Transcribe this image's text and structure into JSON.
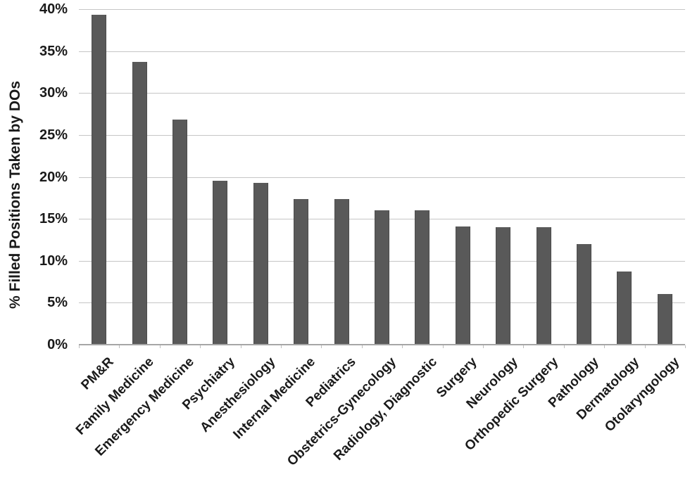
{
  "chart_data": {
    "type": "bar",
    "title": "",
    "xlabel": "",
    "ylabel": "% Filled Positions Taken by DOs",
    "categories": [
      "PM&R",
      "Family Medicine",
      "Emergency Medicine",
      "Psychiatry",
      "Anesthesiology",
      "Internal Medicine",
      "Pediatrics",
      "Obstetrics-Gynecology",
      "Radiology, Diagnostic",
      "Surgery",
      "Neurology",
      "Orthopedic Surgery",
      "Pathology",
      "Dermatology",
      "Otolaryngology"
    ],
    "values": [
      39.3,
      33.7,
      26.8,
      19.5,
      19.3,
      17.4,
      17.4,
      16.0,
      16.0,
      14.1,
      14.0,
      14.0,
      12.0,
      8.7,
      6.0
    ],
    "ylim": [
      0,
      40
    ],
    "yticks": [
      "0%",
      "5%",
      "10%",
      "15%",
      "20%",
      "25%",
      "30%",
      "35%",
      "40%"
    ],
    "grid": true,
    "legend": "none",
    "colors": {
      "bar": "#595959",
      "bar_edge": "#4c4c4c",
      "gridline": "#c6c6c6",
      "axis_line": "#a6a6a6",
      "tick_mark": "#bdbdbd",
      "text": "#1a1a1a",
      "background": "#ffffff"
    }
  }
}
